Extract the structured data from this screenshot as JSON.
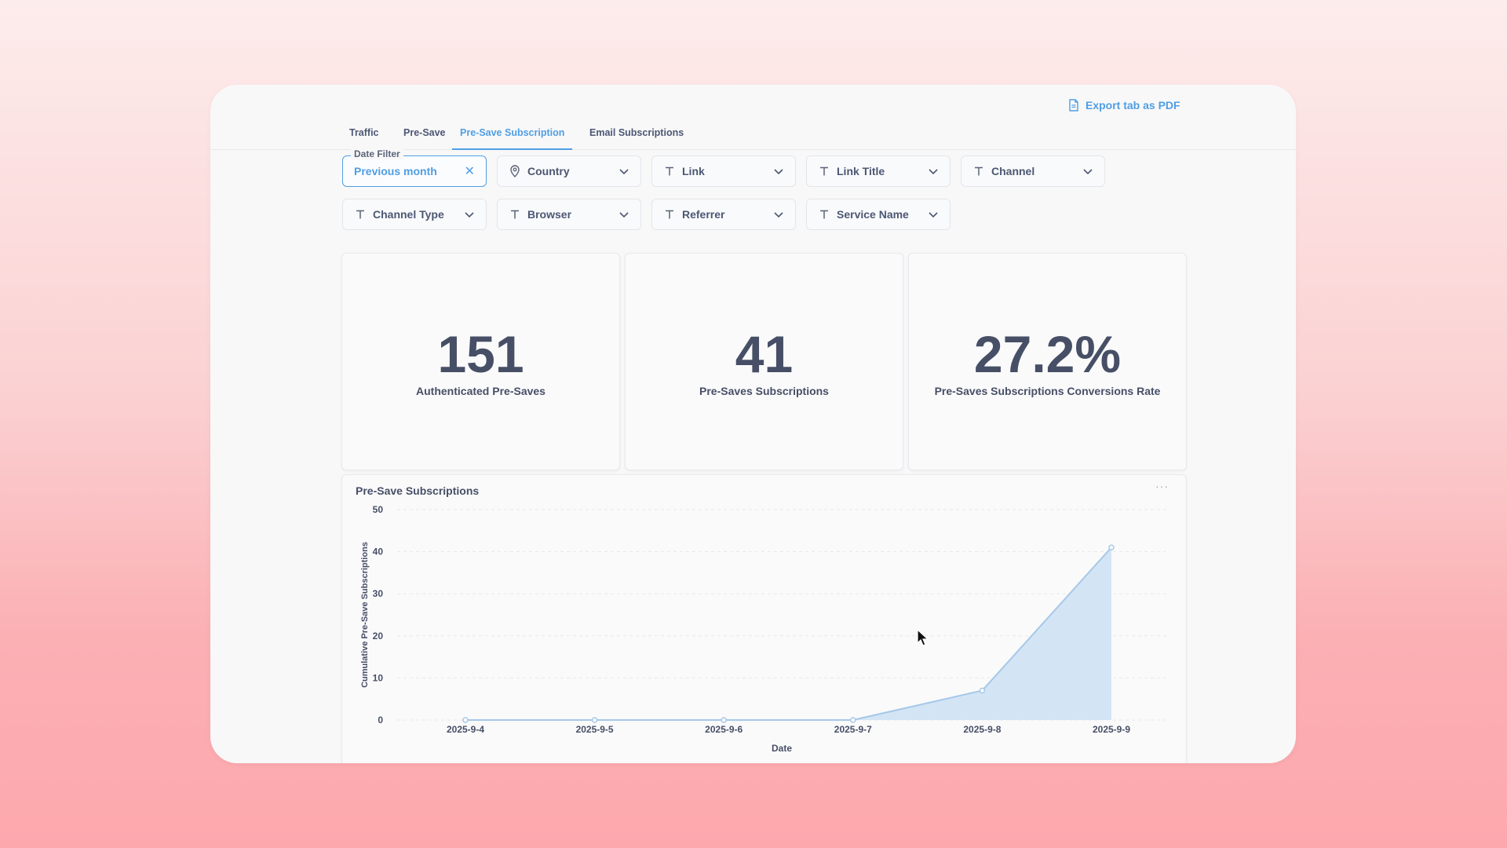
{
  "toolbar": {
    "export_label": "Export tab as PDF",
    "export_icon": "document-icon"
  },
  "tabs": [
    {
      "label": "Traffic",
      "active": false
    },
    {
      "label": "Pre-Save",
      "active": false
    },
    {
      "label": "Pre-Save Subscription",
      "active": true
    },
    {
      "label": "Email Subscriptions",
      "active": false
    }
  ],
  "filters": {
    "date": {
      "legend": "Date Filter",
      "value": "Previous month"
    },
    "items": [
      {
        "label": "Country",
        "icon": "location-pin-icon"
      },
      {
        "label": "Link",
        "icon": "text-icon"
      },
      {
        "label": "Link Title",
        "icon": "text-icon"
      },
      {
        "label": "Channel",
        "icon": "text-icon"
      },
      {
        "label": "Channel Type",
        "icon": "text-icon"
      },
      {
        "label": "Browser",
        "icon": "text-icon"
      },
      {
        "label": "Referrer",
        "icon": "text-icon"
      },
      {
        "label": "Service Name",
        "icon": "text-icon"
      }
    ]
  },
  "metrics": [
    {
      "value": "151",
      "caption": "Authenticated Pre-Saves"
    },
    {
      "value": "41",
      "caption": "Pre-Saves Subscriptions"
    },
    {
      "value": "27.2%",
      "caption": "Pre-Saves Subscriptions Conversions Rate"
    }
  ],
  "chart": {
    "more_label": "···"
  },
  "chart_data": {
    "type": "area",
    "title": "Pre-Save Subscriptions",
    "xlabel": "Date",
    "ylabel": "Cumulative Pre-Save Subscriptions",
    "categories": [
      "2025-9-4",
      "2025-9-5",
      "2025-9-6",
      "2025-9-7",
      "2025-9-8",
      "2025-9-9"
    ],
    "values": [
      0,
      0,
      0,
      0,
      7,
      41
    ],
    "yticks": [
      0,
      10,
      20,
      30,
      40,
      50
    ],
    "ylim": [
      0,
      50
    ],
    "grid": true,
    "color": "#a6c8e8",
    "fill": "#d3e5f5"
  },
  "colors": {
    "accent": "#509ee3",
    "text": "#474f66"
  }
}
